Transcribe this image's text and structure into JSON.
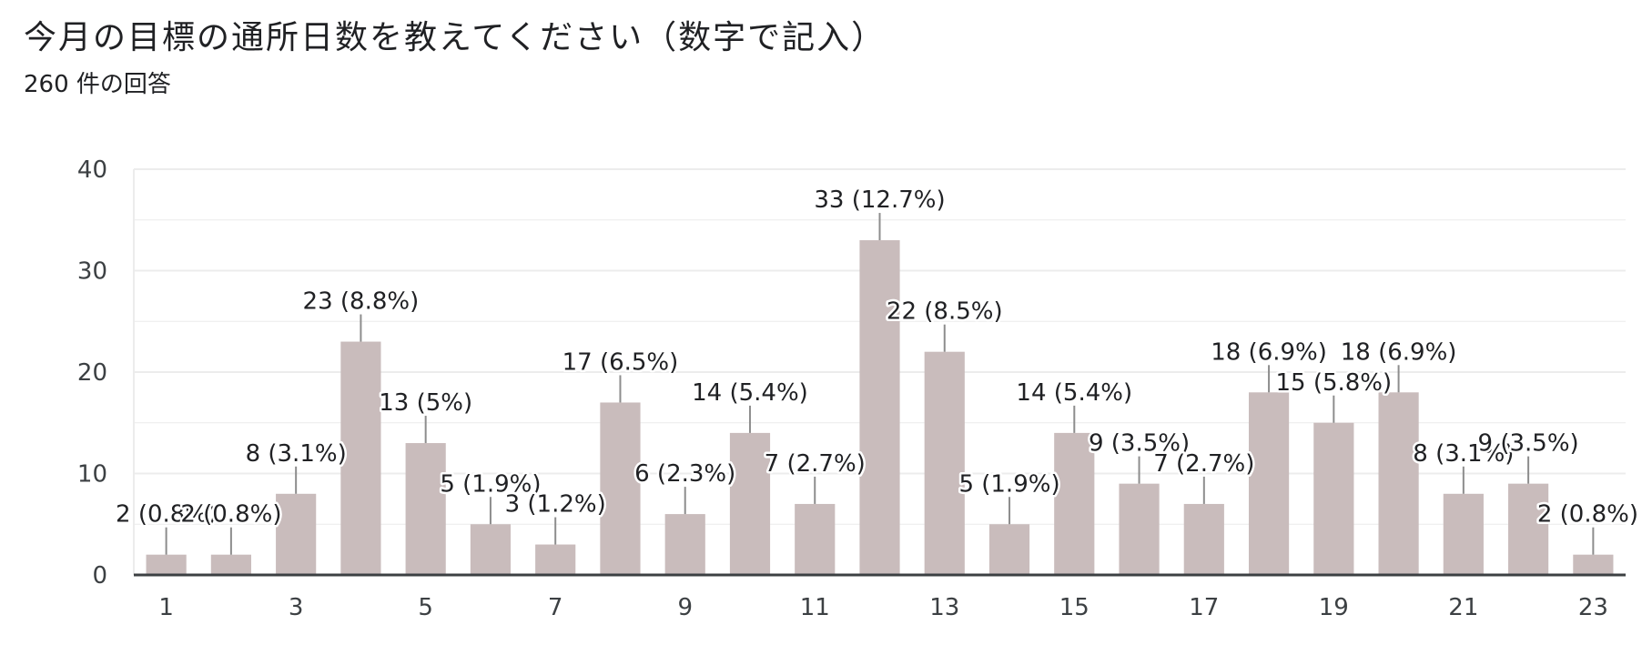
{
  "header": {
    "title": "今月の目標の通所日数を教えてください（数字で記入）",
    "subtitle": "260 件の回答"
  },
  "colors": {
    "bar": "#c9bcbc",
    "leader": "#8d8d8d",
    "grid": "#ececec",
    "axis": "#3c4043"
  },
  "chart_data": {
    "type": "bar",
    "categories": [
      "1",
      "2",
      "3",
      "4",
      "5",
      "6",
      "7",
      "8",
      "9",
      "10",
      "11",
      "12",
      "13",
      "14",
      "15",
      "16",
      "17",
      "18",
      "19",
      "20",
      "21",
      "22",
      "23"
    ],
    "values": [
      2,
      2,
      8,
      23,
      13,
      5,
      3,
      17,
      6,
      14,
      7,
      33,
      22,
      5,
      14,
      9,
      7,
      18,
      15,
      18,
      8,
      9,
      2
    ],
    "data_labels": [
      "2 (0.8%)",
      "2 (0.8%)",
      "8 (3.1%)",
      "23 (8.8%)",
      "13 (5%)",
      "5 (1.9%)",
      "3 (1.2%)",
      "17 (6.5%)",
      "6 (2.3%)",
      "14 (5.4%)",
      "7 (2.7%)",
      "33 (12.7%)",
      "22 (8.5%)",
      "5 (1.9%)",
      "14 (5.4%)",
      "9 (3.5%)",
      "7 (2.7%)",
      "18 (6.9%)",
      "15 (5.8%)",
      "18 (6.9%)",
      "8 (3.1%)",
      "9 (3.5%)",
      "2 (0.8%)"
    ],
    "x_tick_labels": [
      "1",
      "3",
      "5",
      "7",
      "9",
      "11",
      "13",
      "15",
      "17",
      "19",
      "21",
      "23"
    ],
    "y_ticks": [
      0,
      10,
      20,
      30,
      40
    ],
    "ylim": [
      0,
      40
    ],
    "grid": true,
    "legend": "none"
  }
}
